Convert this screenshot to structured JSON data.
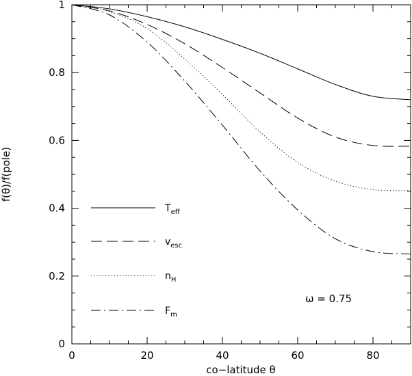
{
  "chart_data": {
    "type": "line",
    "xlabel": "co−latitude θ",
    "ylabel": "f(θ)/f(pole)",
    "xlim": [
      0,
      90
    ],
    "ylim": [
      0,
      1
    ],
    "x_ticks_major": [
      0,
      20,
      40,
      60,
      80
    ],
    "y_ticks_major": [
      0,
      0.2,
      0.4,
      0.6,
      0.8,
      1
    ],
    "y_tick_labels": [
      "0",
      "0.2",
      "0.4",
      "0.6",
      "0.8",
      "1"
    ],
    "grid": false,
    "legend_placement": "left",
    "annotation": "ω = 0.75",
    "x": [
      0,
      10,
      20,
      30,
      40,
      50,
      60,
      70,
      80,
      90
    ],
    "series": [
      {
        "main": "T",
        "sub": "eff",
        "dash": "solid",
        "values": [
          1.0,
          0.988,
          0.965,
          0.935,
          0.898,
          0.857,
          0.811,
          0.765,
          0.73,
          0.72
        ]
      },
      {
        "main": "v",
        "sub": "esc",
        "dash": "dashed",
        "values": [
          1.0,
          0.982,
          0.942,
          0.885,
          0.815,
          0.74,
          0.666,
          0.61,
          0.585,
          0.583
        ]
      },
      {
        "main": "n",
        "sub": "H",
        "dash": "dotted",
        "values": [
          1.0,
          0.98,
          0.93,
          0.84,
          0.735,
          0.625,
          0.535,
          0.48,
          0.455,
          0.452
        ]
      },
      {
        "main": "F",
        "sub": "m",
        "dash": "dashdot",
        "values": [
          1.0,
          0.97,
          0.89,
          0.775,
          0.645,
          0.51,
          0.395,
          0.31,
          0.272,
          0.265
        ]
      }
    ]
  }
}
